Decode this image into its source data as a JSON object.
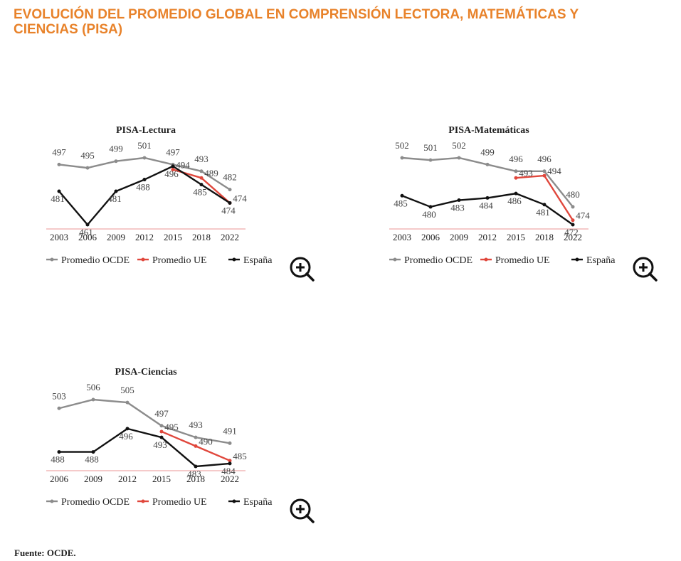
{
  "header": {
    "title": "EVOLUCIÓN DEL PROMEDIO GLOBAL EN COMPRENSIÓN LECTORA, MATEMÁTICAS Y CIENCIAS (PISA)"
  },
  "chart_data": [
    {
      "type": "line",
      "title": "PISA-Lectura",
      "categories": [
        "2003",
        "2006",
        "2009",
        "2012",
        "2015",
        "2018",
        "2022"
      ],
      "series": [
        {
          "name": "Promedio OCDE",
          "color": "#8c8c8c",
          "values": [
            497,
            495,
            499,
            501,
            497,
            493,
            482
          ]
        },
        {
          "name": "Promedio UE",
          "color": "#e0473c",
          "values": [
            null,
            null,
            null,
            null,
            494,
            489,
            474
          ]
        },
        {
          "name": "España",
          "color": "#111111",
          "values": [
            481,
            461,
            481,
            488,
            496,
            485,
            474
          ]
        }
      ]
    },
    {
      "type": "line",
      "title": "PISA-Matemáticas",
      "categories": [
        "2003",
        "2006",
        "2009",
        "2012",
        "2015",
        "2018",
        "2022"
      ],
      "series": [
        {
          "name": "Promedio OCDE",
          "color": "#8c8c8c",
          "values": [
            502,
            501,
            502,
            499,
            496,
            496,
            480
          ]
        },
        {
          "name": "Promedio UE",
          "color": "#e0473c",
          "values": [
            null,
            null,
            null,
            null,
            493,
            494,
            474
          ]
        },
        {
          "name": "España",
          "color": "#111111",
          "values": [
            485,
            480,
            483,
            484,
            486,
            481,
            472
          ]
        }
      ]
    },
    {
      "type": "line",
      "title": "PISA-Ciencias",
      "categories": [
        "2006",
        "2009",
        "2012",
        "2015",
        "2018",
        "2022"
      ],
      "series": [
        {
          "name": "Promedio OCDE",
          "color": "#8c8c8c",
          "values": [
            503,
            506,
            505,
            497,
            493,
            491
          ]
        },
        {
          "name": "Promedio UE",
          "color": "#e0473c",
          "values": [
            null,
            null,
            null,
            495,
            490,
            485
          ]
        },
        {
          "name": "España",
          "color": "#111111",
          "values": [
            488,
            488,
            496,
            493,
            483,
            484
          ]
        }
      ]
    }
  ],
  "source": "Fuente: OCDE."
}
